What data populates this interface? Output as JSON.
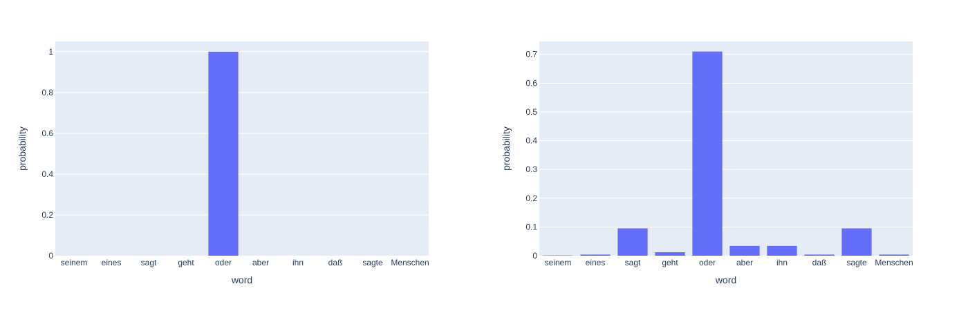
{
  "chart_data": [
    {
      "type": "bar",
      "categories": [
        "seinem",
        "eines",
        "sagt",
        "geht",
        "oder",
        "aber",
        "ihn",
        "daß",
        "sagte",
        "Menschen"
      ],
      "values": [
        0,
        0,
        0,
        0,
        1.0,
        0,
        0,
        0,
        0,
        0
      ],
      "xlabel": "word",
      "ylabel": "probability",
      "ylim": [
        0,
        1.05
      ],
      "yticks": [
        0,
        0.2,
        0.4,
        0.6,
        0.8,
        1
      ],
      "ytick_labels": [
        "0",
        "0.2",
        "0.4",
        "0.6",
        "0.8",
        "1"
      ],
      "grid": true
    },
    {
      "type": "bar",
      "categories": [
        "seinem",
        "eines",
        "sagt",
        "geht",
        "oder",
        "aber",
        "ihn",
        "daß",
        "sagte",
        "Menschen"
      ],
      "values": [
        0.001,
        0.004,
        0.095,
        0.012,
        0.71,
        0.034,
        0.034,
        0.004,
        0.095,
        0.004
      ],
      "xlabel": "word",
      "ylabel": "probability",
      "ylim": [
        0,
        0.745
      ],
      "yticks": [
        0,
        0.1,
        0.2,
        0.3,
        0.4,
        0.5,
        0.6,
        0.7
      ],
      "ytick_labels": [
        "0",
        "0.1",
        "0.2",
        "0.3",
        "0.4",
        "0.5",
        "0.6",
        "0.7"
      ],
      "grid": true
    }
  ],
  "colors": {
    "bar": "#636efa",
    "plot_bg": "#e5ecf6",
    "grid": "#ffffff",
    "text": "#2a3f5f"
  }
}
